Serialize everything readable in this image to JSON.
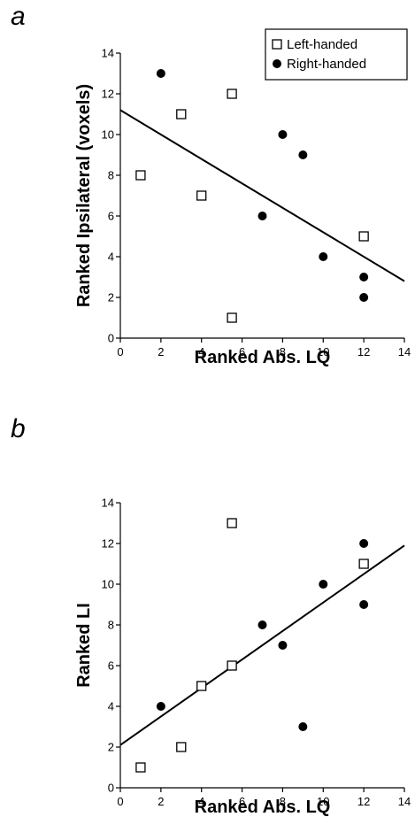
{
  "chart_data": [
    {
      "panel": "a",
      "type": "scatter",
      "xlabel": "Ranked Abs. LQ",
      "ylabel": "Ranked Ipsilateral (voxels)",
      "xlim": [
        0,
        14
      ],
      "ylim": [
        0,
        14
      ],
      "xticks": [
        0,
        2,
        4,
        6,
        8,
        10,
        12,
        14
      ],
      "yticks": [
        0,
        2,
        4,
        6,
        8,
        10,
        12,
        14
      ],
      "legend": {
        "position": "top-right",
        "entries": [
          "Left-handed",
          "Right-handed"
        ]
      },
      "series": [
        {
          "name": "Left-handed",
          "marker": "open-square",
          "points": [
            [
              1,
              8
            ],
            [
              3,
              11
            ],
            [
              4,
              7
            ],
            [
              5.5,
              12
            ],
            [
              5.5,
              1
            ],
            [
              12,
              5
            ]
          ]
        },
        {
          "name": "Right-handed",
          "marker": "filled-circle",
          "points": [
            [
              2,
              13
            ],
            [
              7,
              6
            ],
            [
              8,
              10
            ],
            [
              9,
              9
            ],
            [
              10,
              4
            ],
            [
              12,
              3
            ],
            [
              12,
              2
            ]
          ]
        }
      ],
      "fit_line": [
        [
          0,
          11.2
        ],
        [
          14,
          2.8
        ]
      ]
    },
    {
      "panel": "b",
      "type": "scatter",
      "xlabel": "Ranked Abs. LQ",
      "ylabel": "Ranked LI",
      "xlim": [
        0,
        14
      ],
      "ylim": [
        0,
        14
      ],
      "xticks": [
        0,
        2,
        4,
        6,
        8,
        10,
        12,
        14
      ],
      "yticks": [
        0,
        2,
        4,
        6,
        8,
        10,
        12,
        14
      ],
      "series": [
        {
          "name": "Left-handed",
          "marker": "open-square",
          "points": [
            [
              1,
              1
            ],
            [
              3,
              2
            ],
            [
              4,
              5
            ],
            [
              5.5,
              6
            ],
            [
              5.5,
              13
            ],
            [
              12,
              11
            ]
          ]
        },
        {
          "name": "Right-handed",
          "marker": "filled-circle",
          "points": [
            [
              2,
              4
            ],
            [
              7,
              8
            ],
            [
              8,
              7
            ],
            [
              9,
              3
            ],
            [
              10,
              10
            ],
            [
              12,
              12
            ],
            [
              12,
              9
            ]
          ]
        }
      ],
      "fit_line": [
        [
          0,
          2.1
        ],
        [
          14,
          11.9
        ]
      ]
    }
  ]
}
